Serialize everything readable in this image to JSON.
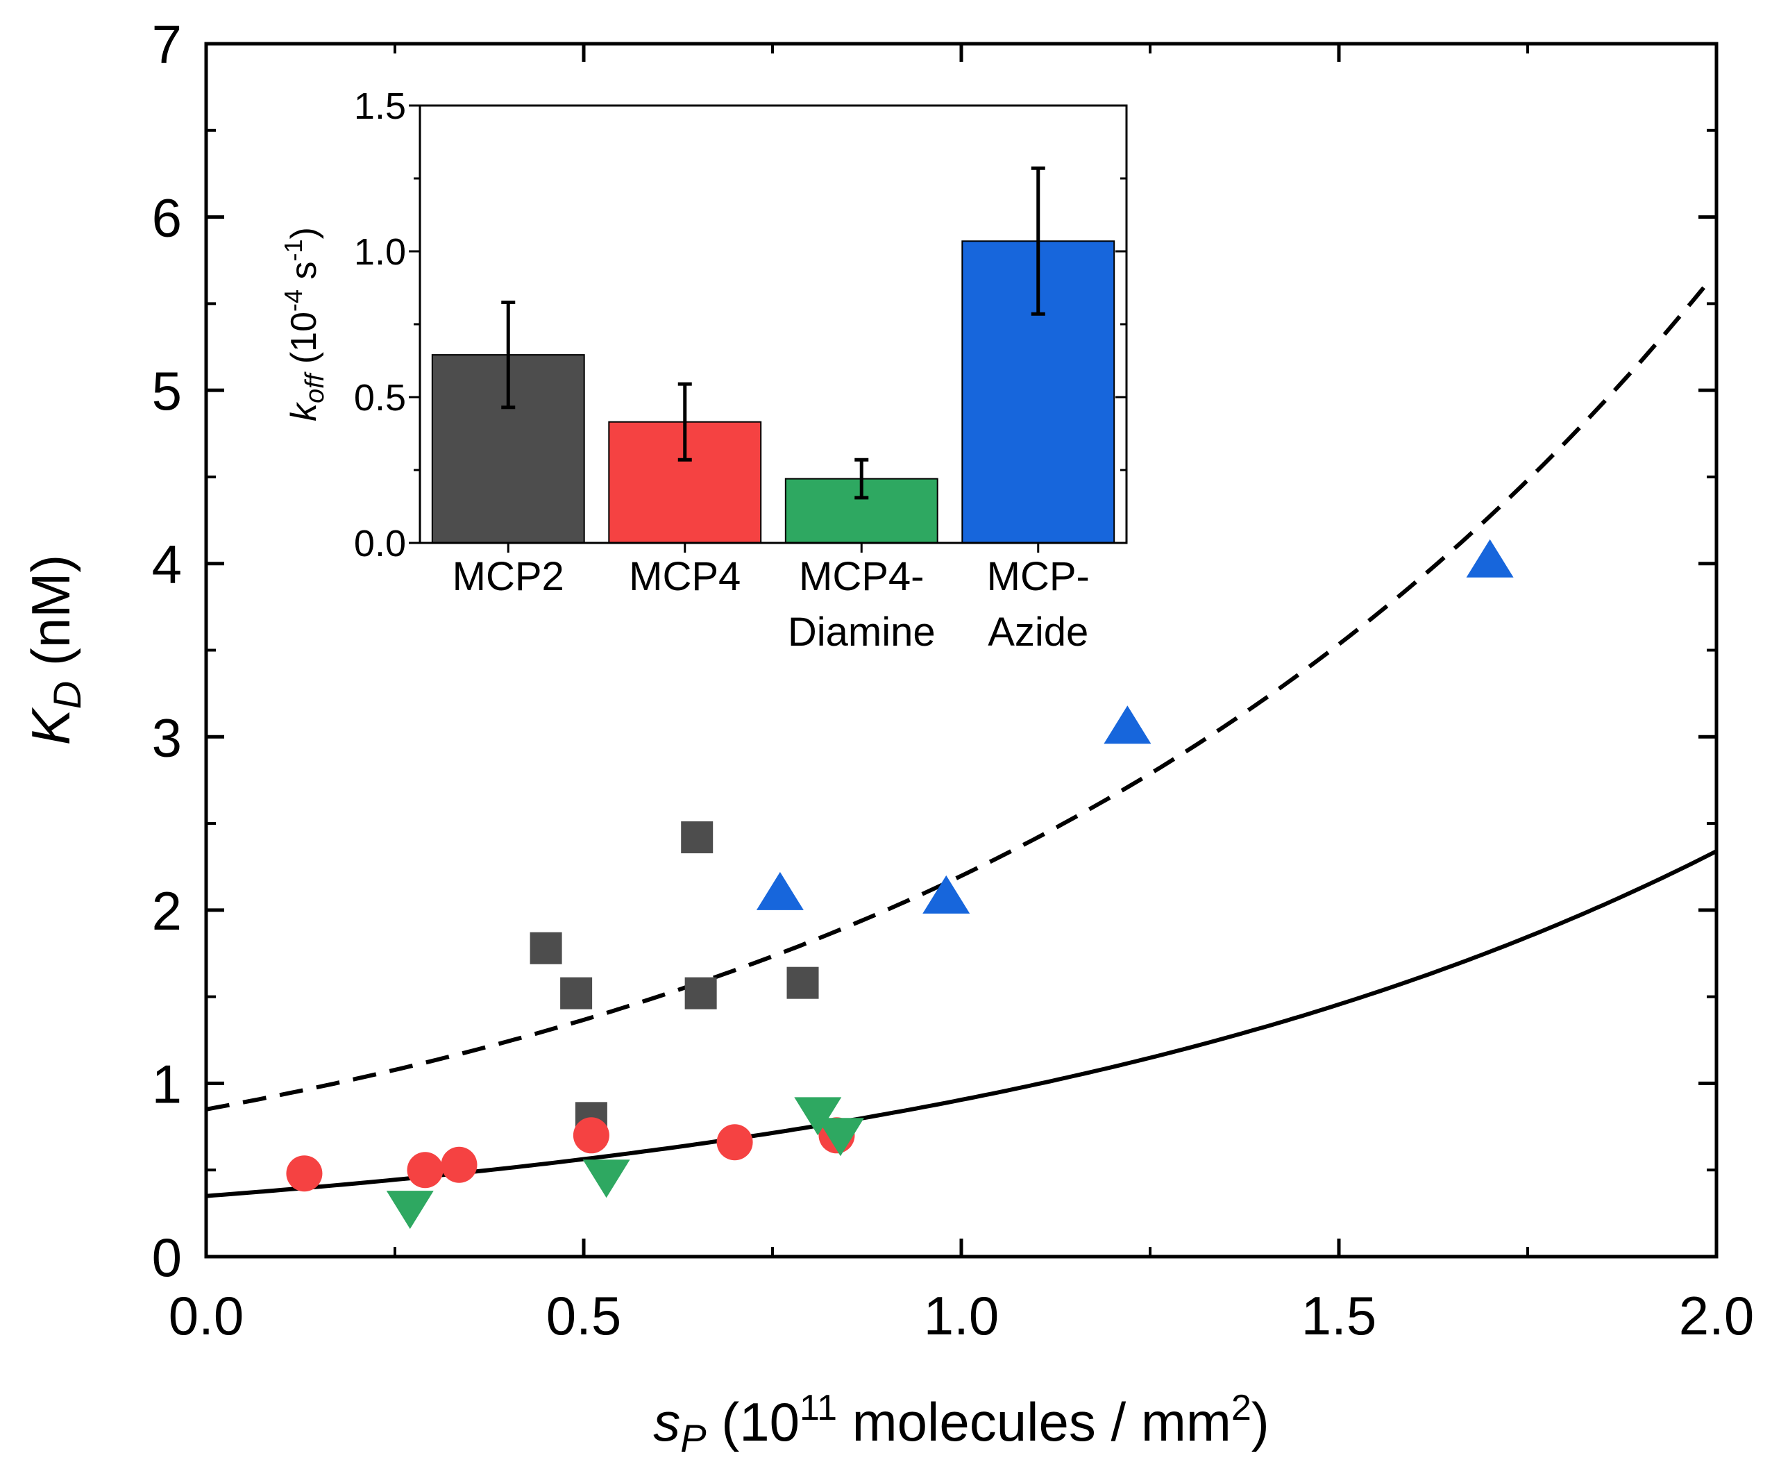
{
  "colors": {
    "mcp2": "#4d4d4d",
    "mcp4": "#f54242",
    "mcp4_diamine": "#2ea861",
    "mcp_azide": "#1766dc",
    "axis": "#000000"
  },
  "chart_data": [
    {
      "type": "scatter",
      "name": "main",
      "xlabel": {
        "var": "s",
        "sub": "P",
        "pre": " (10",
        "sup": "11",
        "post": " molecules / mm",
        "sup2": "2",
        "close": ")"
      },
      "ylabel": {
        "var": "K",
        "sub": "D",
        "unit": " (nM)"
      },
      "xlim": [
        0,
        2.0
      ],
      "ylim": [
        0,
        7
      ],
      "xticks": [
        0.0,
        0.5,
        1.0,
        1.5,
        2.0
      ],
      "xtick_labels": [
        "0.0",
        "0.5",
        "1.0",
        "1.5",
        "2.0"
      ],
      "yticks": [
        0,
        1,
        2,
        3,
        4,
        5,
        6,
        7
      ],
      "ytick_labels": [
        "0",
        "1",
        "2",
        "3",
        "4",
        "5",
        "6",
        "7"
      ],
      "series": [
        {
          "name": "MCP2",
          "marker": "square",
          "color_key": "mcp2",
          "points": [
            [
              0.45,
              1.78
            ],
            [
              0.49,
              1.52
            ],
            [
              0.65,
              2.42
            ],
            [
              0.655,
              1.52
            ],
            [
              0.79,
              1.58
            ],
            [
              0.51,
              0.8
            ]
          ]
        },
        {
          "name": "MCP4",
          "marker": "circle",
          "color_key": "mcp4",
          "points": [
            [
              0.13,
              0.48
            ],
            [
              0.29,
              0.5
            ],
            [
              0.335,
              0.53
            ],
            [
              0.51,
              0.7
            ],
            [
              0.7,
              0.66
            ],
            [
              0.835,
              0.7
            ]
          ]
        },
        {
          "name": "MCP4-Diamine",
          "marker": "triangle-down",
          "color_key": "mcp4_diamine",
          "points": [
            [
              0.27,
              0.28
            ],
            [
              0.53,
              0.46
            ],
            [
              0.81,
              0.82
            ],
            [
              0.84,
              0.7
            ]
          ]
        },
        {
          "name": "MCP-Azide",
          "marker": "triangle-up",
          "color_key": "mcp_azide",
          "points": [
            [
              0.76,
              2.1
            ],
            [
              0.98,
              2.08
            ],
            [
              1.22,
              3.06
            ],
            [
              1.7,
              4.02
            ]
          ]
        }
      ],
      "curves": [
        {
          "name": "fit-solid",
          "style": "solid",
          "y0": 0.35,
          "k": 0.95,
          "x_range": [
            0,
            2.0
          ]
        },
        {
          "name": "fit-dashed",
          "style": "dashed",
          "y0": 0.85,
          "k": 0.95,
          "x_range": [
            0,
            1.99
          ]
        }
      ]
    },
    {
      "type": "bar",
      "name": "inset",
      "ylabel": {
        "var": "k",
        "sub": "off",
        "pre": " (10",
        "sup": "-4",
        "post": " s",
        "sup2": "-1",
        "close": ")"
      },
      "ylim": [
        0,
        1.5
      ],
      "yticks": [
        0.0,
        0.5,
        1.0,
        1.5
      ],
      "ytick_labels": [
        "0.0",
        "0.5",
        "1.0",
        "1.5"
      ],
      "categories": [
        [
          "MCP2"
        ],
        [
          "MCP4"
        ],
        [
          "MCP4-",
          "Diamine"
        ],
        [
          "MCP-",
          "Azide"
        ]
      ],
      "values": [
        0.645,
        0.415,
        0.22,
        1.035
      ],
      "errors": [
        0.18,
        0.13,
        0.065,
        0.25
      ],
      "color_keys": [
        "mcp2",
        "mcp4",
        "mcp4_diamine",
        "mcp_azide"
      ]
    }
  ]
}
